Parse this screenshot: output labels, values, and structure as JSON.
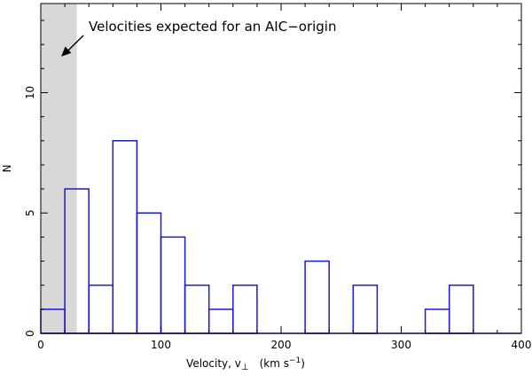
{
  "chart_data": {
    "type": "bar",
    "bin_width": 20,
    "bins": [
      {
        "x0": 0,
        "x1": 20,
        "value": 1
      },
      {
        "x0": 20,
        "x1": 40,
        "value": 6
      },
      {
        "x0": 40,
        "x1": 60,
        "value": 2
      },
      {
        "x0": 60,
        "x1": 80,
        "value": 8
      },
      {
        "x0": 80,
        "x1": 100,
        "value": 5
      },
      {
        "x0": 100,
        "x1": 120,
        "value": 4
      },
      {
        "x0": 120,
        "x1": 140,
        "value": 2
      },
      {
        "x0": 140,
        "x1": 160,
        "value": 1
      },
      {
        "x0": 160,
        "x1": 180,
        "value": 2
      },
      {
        "x0": 180,
        "x1": 200,
        "value": 0
      },
      {
        "x0": 200,
        "x1": 220,
        "value": 0
      },
      {
        "x0": 220,
        "x1": 240,
        "value": 3
      },
      {
        "x0": 240,
        "x1": 260,
        "value": 0
      },
      {
        "x0": 260,
        "x1": 280,
        "value": 2
      },
      {
        "x0": 280,
        "x1": 300,
        "value": 0
      },
      {
        "x0": 300,
        "x1": 320,
        "value": 0
      },
      {
        "x0": 320,
        "x1": 340,
        "value": 1
      },
      {
        "x0": 340,
        "x1": 360,
        "value": 2
      },
      {
        "x0": 360,
        "x1": 380,
        "value": 0
      },
      {
        "x0": 380,
        "x1": 400,
        "value": 0
      }
    ],
    "xlim": [
      0,
      400
    ],
    "ylim": [
      0,
      13.7
    ],
    "xticks": [
      0,
      100,
      200,
      300,
      400
    ],
    "yticks": [
      0,
      5,
      10
    ],
    "xlabel": "Velocity, v",
    "xlabel_sub": "⊥",
    "xlabel_units": "(km s",
    "xlabel_units_sup": "−1",
    "xlabel_units_close": ")",
    "ylabel": "N",
    "shaded_region": [
      0,
      30
    ],
    "annotation": {
      "text": "Velocities expected for an AIC−origin",
      "arrow_tip": [
        17,
        11.5
      ]
    },
    "colors": {
      "bars": "#1a1acc",
      "shade": "#d8d8d8"
    },
    "grid": false
  }
}
